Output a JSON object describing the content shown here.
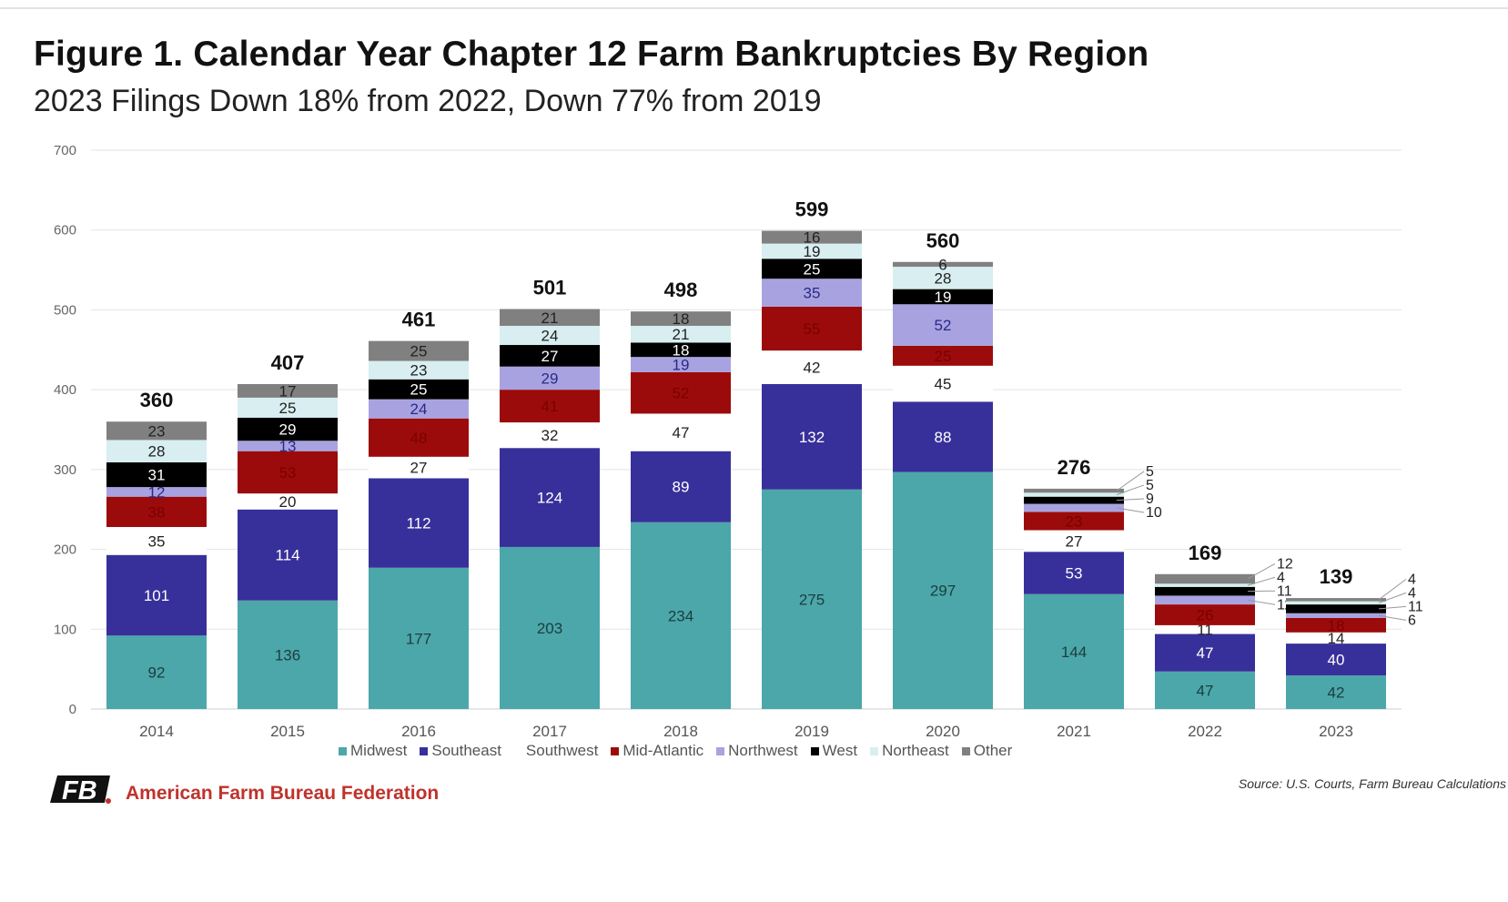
{
  "chart_data": {
    "type": "bar",
    "stacked": true,
    "title": "Figure 1. Calendar Year Chapter 12 Farm Bankruptcies By Region",
    "subtitle": "2023 Filings Down 18% from 2022, Down 77% from 2019",
    "xlabel": "",
    "ylabel": "",
    "ylim": [
      0,
      700
    ],
    "yticks": [
      0,
      100,
      200,
      300,
      400,
      500,
      600,
      700
    ],
    "grid": true,
    "legend_position": "bottom",
    "categories": [
      "2014",
      "2015",
      "2016",
      "2017",
      "2018",
      "2019",
      "2020",
      "2021",
      "2022",
      "2023"
    ],
    "totals": [
      360,
      407,
      461,
      501,
      498,
      599,
      560,
      276,
      169,
      139
    ],
    "series": [
      {
        "name": "Midwest",
        "color": "#4ba7aa",
        "values": [
          92,
          136,
          177,
          203,
          234,
          275,
          297,
          144,
          47,
          42
        ]
      },
      {
        "name": "Southeast",
        "color": "#38309a",
        "values": [
          101,
          114,
          112,
          124,
          89,
          132,
          88,
          53,
          47,
          40
        ]
      },
      {
        "name": "Southwest",
        "color": "#ffffff",
        "values": [
          35,
          20,
          27,
          32,
          47,
          42,
          45,
          27,
          11,
          14
        ]
      },
      {
        "name": "Mid-Atlantic",
        "color": "#9c0b0b",
        "values": [
          38,
          53,
          48,
          41,
          52,
          55,
          25,
          23,
          26,
          18
        ]
      },
      {
        "name": "Northwest",
        "color": "#a8a3e0",
        "values": [
          12,
          13,
          24,
          29,
          19,
          35,
          52,
          10,
          11,
          6
        ]
      },
      {
        "name": "West",
        "color": "#000000",
        "values": [
          31,
          29,
          25,
          27,
          18,
          25,
          19,
          9,
          11,
          11
        ]
      },
      {
        "name": "Northeast",
        "color": "#d8eef0",
        "values": [
          28,
          25,
          23,
          24,
          21,
          19,
          28,
          5,
          4,
          4
        ]
      },
      {
        "name": "Other",
        "color": "#808080",
        "values": [
          23,
          17,
          25,
          21,
          18,
          16,
          6,
          5,
          12,
          4
        ]
      }
    ]
  },
  "footer": {
    "organization": "American Farm Bureau Federation",
    "logo_text": "FB",
    "source": "Source: U.S. Courts, Farm Bureau Calculations"
  }
}
